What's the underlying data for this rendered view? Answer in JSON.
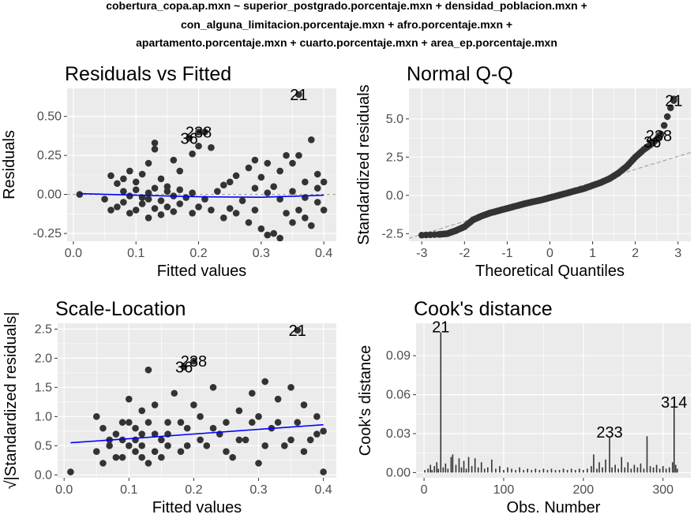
{
  "figure": {
    "title_lines": [
      "cobertura_copa.ap.mxn ~ superior_postgrado.porcentaje.mxn + densidad_poblacion.mxn +",
      "con_alguna_limitacion.porcentaje.mxn + afro.porcentaje.mxn +",
      "apartamento.porcentaje.mxn + cuarto.porcentaje.mxn + area_ep.porcentaje.mxn"
    ],
    "colors": {
      "panel": "#ebebeb",
      "grid": "#ffffff",
      "points": "#333333",
      "smooth": "#0000ff",
      "refline": "#999999"
    }
  },
  "chart_data": [
    {
      "type": "scatter",
      "title": "Residuals vs Fitted",
      "xlabel": "Fitted values",
      "ylabel": "Residuals",
      "xlim": [
        -0.01,
        0.42
      ],
      "ylim": [
        -0.3,
        0.68
      ],
      "xticks": [
        0.0,
        0.1,
        0.2,
        0.3,
        0.4
      ],
      "xtick_labels": [
        "0.0",
        "0.1",
        "0.2",
        "0.3",
        "0.4"
      ],
      "yticks": [
        -0.25,
        0.0,
        0.25,
        0.5
      ],
      "ytick_labels": [
        "-0.25",
        "0.00",
        "0.25",
        "0.50"
      ],
      "grid": true,
      "hline": 0,
      "smooth": [
        [
          0.01,
          0.005
        ],
        [
          0.1,
          -0.005
        ],
        [
          0.2,
          -0.015
        ],
        [
          0.3,
          -0.018
        ],
        [
          0.4,
          -0.005
        ]
      ],
      "labeled_points": [
        {
          "label": "21",
          "x": 0.36,
          "y": 0.64
        },
        {
          "label": "238",
          "x": 0.2,
          "y": 0.4
        },
        {
          "label": "36",
          "x": 0.185,
          "y": 0.36
        }
      ],
      "points": [
        [
          0.01,
          0.0
        ],
        [
          0.06,
          0.12
        ],
        [
          0.07,
          0.07
        ],
        [
          0.08,
          0.1
        ],
        [
          0.09,
          0.15
        ],
        [
          0.1,
          0.08
        ],
        [
          0.11,
          0.13
        ],
        [
          0.12,
          0.2
        ],
        [
          0.13,
          0.29
        ],
        [
          0.13,
          0.33
        ],
        [
          0.14,
          0.1
        ],
        [
          0.15,
          0.05
        ],
        [
          0.16,
          0.22
        ],
        [
          0.17,
          0.15
        ],
        [
          0.19,
          0.26
        ],
        [
          0.2,
          0.31
        ],
        [
          0.21,
          0.4
        ],
        [
          0.22,
          0.3
        ],
        [
          0.24,
          0.06
        ],
        [
          0.25,
          0.08
        ],
        [
          0.26,
          0.12
        ],
        [
          0.28,
          0.17
        ],
        [
          0.29,
          0.22
        ],
        [
          0.3,
          0.11
        ],
        [
          0.31,
          0.2
        ],
        [
          0.32,
          0.05
        ],
        [
          0.33,
          0.15
        ],
        [
          0.34,
          0.25
        ],
        [
          0.35,
          0.2
        ],
        [
          0.36,
          0.25
        ],
        [
          0.37,
          0.08
        ],
        [
          0.38,
          0.35
        ],
        [
          0.39,
          0.13
        ],
        [
          0.4,
          0.08
        ],
        [
          0.05,
          -0.03
        ],
        [
          0.06,
          -0.1
        ],
        [
          0.07,
          -0.08
        ],
        [
          0.08,
          -0.05
        ],
        [
          0.09,
          -0.12
        ],
        [
          0.1,
          -0.1
        ],
        [
          0.11,
          -0.06
        ],
        [
          0.12,
          -0.15
        ],
        [
          0.13,
          -0.09
        ],
        [
          0.14,
          -0.13
        ],
        [
          0.15,
          -0.08
        ],
        [
          0.16,
          -0.11
        ],
        [
          0.17,
          -0.06
        ],
        [
          0.19,
          -0.12
        ],
        [
          0.2,
          -0.08
        ],
        [
          0.22,
          -0.1
        ],
        [
          0.24,
          -0.15
        ],
        [
          0.25,
          -0.09
        ],
        [
          0.26,
          -0.12
        ],
        [
          0.28,
          -0.18
        ],
        [
          0.29,
          -0.1
        ],
        [
          0.3,
          -0.22
        ],
        [
          0.31,
          -0.26
        ],
        [
          0.32,
          -0.25
        ],
        [
          0.33,
          -0.28
        ],
        [
          0.34,
          -0.12
        ],
        [
          0.35,
          -0.18
        ],
        [
          0.36,
          -0.1
        ],
        [
          0.37,
          -0.15
        ],
        [
          0.38,
          -0.2
        ],
        [
          0.39,
          -0.05
        ],
        [
          0.4,
          -0.1
        ],
        [
          0.08,
          0.02
        ],
        [
          0.09,
          -0.01
        ],
        [
          0.1,
          0.03
        ],
        [
          0.11,
          -0.02
        ],
        [
          0.12,
          0.01
        ],
        [
          0.12,
          -0.03
        ],
        [
          0.13,
          0.04
        ],
        [
          0.14,
          -0.04
        ],
        [
          0.15,
          0.02
        ],
        [
          0.16,
          -0.01
        ],
        [
          0.17,
          0.03
        ],
        [
          0.18,
          -0.02
        ],
        [
          0.19,
          0.01
        ],
        [
          0.21,
          -0.03
        ],
        [
          0.23,
          0.02
        ],
        [
          0.27,
          -0.04
        ],
        [
          0.29,
          0.04
        ],
        [
          0.31,
          0.01
        ],
        [
          0.33,
          -0.03
        ],
        [
          0.35,
          0.02
        ],
        [
          0.37,
          -0.02
        ],
        [
          0.39,
          0.04
        ]
      ]
    },
    {
      "type": "scatter",
      "title": "Normal Q-Q",
      "xlabel": "Theoretical Quantiles",
      "ylabel": "Standardized residuals",
      "xlim": [
        -3.3,
        3.3
      ],
      "ylim": [
        -3.0,
        7.0
      ],
      "xticks": [
        -3,
        -2,
        -1,
        0,
        1,
        2,
        3
      ],
      "xtick_labels": [
        "-3",
        "-2",
        "-1",
        "0",
        "1",
        "2",
        "3"
      ],
      "yticks": [
        -2.5,
        0.0,
        2.5,
        5.0
      ],
      "ytick_labels": [
        "-2.5",
        "0.0",
        "2.5",
        "5.0"
      ],
      "grid": true,
      "refline": {
        "slope": 0.85,
        "intercept": 0.0
      },
      "labeled_points": [
        {
          "label": "21",
          "x": 2.9,
          "y": 6.2
        },
        {
          "label": "238",
          "x": 2.55,
          "y": 3.9
        },
        {
          "label": "36",
          "x": 2.4,
          "y": 3.5
        }
      ],
      "quantile_path": [
        [
          -3.0,
          -2.6
        ],
        [
          -2.6,
          -2.55
        ],
        [
          -2.4,
          -2.5
        ],
        [
          -2.2,
          -2.3
        ],
        [
          -2.0,
          -2.05
        ],
        [
          -1.8,
          -1.6
        ],
        [
          -1.6,
          -1.35
        ],
        [
          -1.4,
          -1.15
        ],
        [
          -1.2,
          -1.0
        ],
        [
          -1.0,
          -0.85
        ],
        [
          -0.8,
          -0.7
        ],
        [
          -0.6,
          -0.55
        ],
        [
          -0.4,
          -0.42
        ],
        [
          -0.2,
          -0.3
        ],
        [
          0.0,
          -0.15
        ],
        [
          0.2,
          0.0
        ],
        [
          0.4,
          0.15
        ],
        [
          0.6,
          0.3
        ],
        [
          0.8,
          0.45
        ],
        [
          1.0,
          0.65
        ],
        [
          1.2,
          0.85
        ],
        [
          1.4,
          1.1
        ],
        [
          1.6,
          1.45
        ],
        [
          1.8,
          1.9
        ],
        [
          2.0,
          2.5
        ],
        [
          2.2,
          3.0
        ],
        [
          2.4,
          3.4
        ],
        [
          2.55,
          3.8
        ],
        [
          2.6,
          4.0
        ],
        [
          2.9,
          6.3
        ]
      ]
    },
    {
      "type": "scatter",
      "title": "Scale-Location",
      "xlabel": "Fitted values",
      "ylabel": "√|Standardized residuals|",
      "xlim": [
        -0.01,
        0.42
      ],
      "ylim": [
        -0.05,
        2.6
      ],
      "xticks": [
        0.0,
        0.1,
        0.2,
        0.3,
        0.4
      ],
      "xtick_labels": [
        "0.0",
        "0.1",
        "0.2",
        "0.3",
        "0.4"
      ],
      "yticks": [
        0.0,
        0.5,
        1.0,
        1.5,
        2.0,
        2.5
      ],
      "ytick_labels": [
        "0.0",
        "0.5",
        "1.0",
        "1.5",
        "2.0",
        "2.5"
      ],
      "grid": true,
      "smooth": [
        [
          0.01,
          0.55
        ],
        [
          0.1,
          0.62
        ],
        [
          0.2,
          0.7
        ],
        [
          0.3,
          0.78
        ],
        [
          0.4,
          0.86
        ]
      ],
      "labeled_points": [
        {
          "label": "21",
          "x": 0.36,
          "y": 2.48
        },
        {
          "label": "238",
          "x": 0.2,
          "y": 1.95
        },
        {
          "label": "36",
          "x": 0.185,
          "y": 1.85
        }
      ],
      "points": [
        [
          0.01,
          0.05
        ],
        [
          0.05,
          1.0
        ],
        [
          0.06,
          0.8
        ],
        [
          0.07,
          0.5
        ],
        [
          0.08,
          0.3
        ],
        [
          0.09,
          0.6
        ],
        [
          0.1,
          1.3
        ],
        [
          0.1,
          0.9
        ],
        [
          0.11,
          0.4
        ],
        [
          0.12,
          1.1
        ],
        [
          0.12,
          0.7
        ],
        [
          0.13,
          1.8
        ],
        [
          0.13,
          0.2
        ],
        [
          0.14,
          1.2
        ],
        [
          0.15,
          0.6
        ],
        [
          0.16,
          0.9
        ],
        [
          0.17,
          1.4
        ],
        [
          0.18,
          0.4
        ],
        [
          0.19,
          0.8
        ],
        [
          0.2,
          1.2
        ],
        [
          0.21,
          1.0
        ],
        [
          0.22,
          0.5
        ],
        [
          0.23,
          1.5
        ],
        [
          0.24,
          0.7
        ],
        [
          0.25,
          0.9
        ],
        [
          0.26,
          0.3
        ],
        [
          0.27,
          1.1
        ],
        [
          0.28,
          0.6
        ],
        [
          0.29,
          1.4
        ],
        [
          0.3,
          0.2
        ],
        [
          0.3,
          1.0
        ],
        [
          0.31,
          1.6
        ],
        [
          0.32,
          0.8
        ],
        [
          0.33,
          1.3
        ],
        [
          0.34,
          0.5
        ],
        [
          0.35,
          1.5
        ],
        [
          0.36,
          0.9
        ],
        [
          0.37,
          1.2
        ],
        [
          0.38,
          0.6
        ],
        [
          0.39,
          1.0
        ],
        [
          0.4,
          0.05
        ],
        [
          0.4,
          0.75
        ],
        [
          0.05,
          0.4
        ],
        [
          0.06,
          0.2
        ],
        [
          0.08,
          0.7
        ],
        [
          0.09,
          0.3
        ],
        [
          0.11,
          0.8
        ],
        [
          0.12,
          0.5
        ],
        [
          0.14,
          0.7
        ],
        [
          0.15,
          0.3
        ],
        [
          0.16,
          0.5
        ],
        [
          0.18,
          0.9
        ],
        [
          0.19,
          0.5
        ],
        [
          0.21,
          0.6
        ],
        [
          0.23,
          0.8
        ],
        [
          0.25,
          0.4
        ],
        [
          0.27,
          0.6
        ],
        [
          0.29,
          0.9
        ],
        [
          0.31,
          0.5
        ],
        [
          0.33,
          0.9
        ],
        [
          0.35,
          0.6
        ],
        [
          0.37,
          0.4
        ],
        [
          0.39,
          0.7
        ],
        [
          0.11,
          0.6
        ],
        [
          0.13,
          0.9
        ],
        [
          0.14,
          0.4
        ],
        [
          0.16,
          0.7
        ],
        [
          0.12,
          0.3
        ],
        [
          0.1,
          0.5
        ],
        [
          0.09,
          0.9
        ],
        [
          0.07,
          0.6
        ]
      ]
    },
    {
      "type": "bar",
      "title": "Cook's distance",
      "xlabel": "Obs. Number",
      "ylabel": "Cook's distance",
      "xlim": [
        -10,
        335
      ],
      "ylim": [
        -0.004,
        0.115
      ],
      "xticks": [
        0,
        100,
        200,
        300
      ],
      "xtick_labels": [
        "0",
        "100",
        "200",
        "300"
      ],
      "yticks": [
        0.0,
        0.03,
        0.06,
        0.09
      ],
      "ytick_labels": [
        "0.00",
        "0.03",
        "0.06",
        "0.09"
      ],
      "grid": true,
      "labeled_points": [
        {
          "label": "21",
          "x": 21,
          "y": 0.108
        },
        {
          "label": "233",
          "x": 233,
          "y": 0.027
        },
        {
          "label": "314",
          "x": 314,
          "y": 0.05
        }
      ],
      "bars": [
        [
          1,
          0.002
        ],
        [
          5,
          0.003
        ],
        [
          8,
          0.006
        ],
        [
          10,
          0.002
        ],
        [
          13,
          0.005
        ],
        [
          16,
          0.008
        ],
        [
          18,
          0.003
        ],
        [
          21,
          0.108
        ],
        [
          24,
          0.004
        ],
        [
          27,
          0.007
        ],
        [
          30,
          0.003
        ],
        [
          34,
          0.012
        ],
        [
          36,
          0.014
        ],
        [
          40,
          0.006
        ],
        [
          44,
          0.011
        ],
        [
          47,
          0.004
        ],
        [
          50,
          0.009
        ],
        [
          53,
          0.003
        ],
        [
          56,
          0.012
        ],
        [
          60,
          0.005
        ],
        [
          64,
          0.011
        ],
        [
          68,
          0.004
        ],
        [
          72,
          0.008
        ],
        [
          76,
          0.003
        ],
        [
          80,
          0.004
        ],
        [
          85,
          0.01
        ],
        [
          90,
          0.003
        ],
        [
          95,
          0.005
        ],
        [
          100,
          0.002
        ],
        [
          105,
          0.004
        ],
        [
          110,
          0.003
        ],
        [
          115,
          0.002
        ],
        [
          120,
          0.004
        ],
        [
          125,
          0.002
        ],
        [
          130,
          0.003
        ],
        [
          135,
          0.002
        ],
        [
          140,
          0.003
        ],
        [
          145,
          0.002
        ],
        [
          150,
          0.003
        ],
        [
          155,
          0.002
        ],
        [
          160,
          0.003
        ],
        [
          165,
          0.002
        ],
        [
          170,
          0.002
        ],
        [
          175,
          0.003
        ],
        [
          180,
          0.002
        ],
        [
          185,
          0.003
        ],
        [
          190,
          0.002
        ],
        [
          195,
          0.003
        ],
        [
          200,
          0.002
        ],
        [
          205,
          0.003
        ],
        [
          210,
          0.005
        ],
        [
          213,
          0.014
        ],
        [
          217,
          0.003
        ],
        [
          220,
          0.008
        ],
        [
          224,
          0.004
        ],
        [
          228,
          0.01
        ],
        [
          233,
          0.027
        ],
        [
          236,
          0.004
        ],
        [
          240,
          0.006
        ],
        [
          244,
          0.003
        ],
        [
          248,
          0.012
        ],
        [
          252,
          0.004
        ],
        [
          256,
          0.008
        ],
        [
          260,
          0.003
        ],
        [
          264,
          0.006
        ],
        [
          268,
          0.004
        ],
        [
          272,
          0.007
        ],
        [
          276,
          0.003
        ],
        [
          280,
          0.028
        ],
        [
          284,
          0.005
        ],
        [
          288,
          0.004
        ],
        [
          292,
          0.006
        ],
        [
          296,
          0.003
        ],
        [
          300,
          0.005
        ],
        [
          304,
          0.003
        ],
        [
          308,
          0.004
        ],
        [
          312,
          0.008
        ],
        [
          314,
          0.05
        ],
        [
          316,
          0.006
        ],
        [
          318,
          0.003
        ]
      ]
    }
  ]
}
